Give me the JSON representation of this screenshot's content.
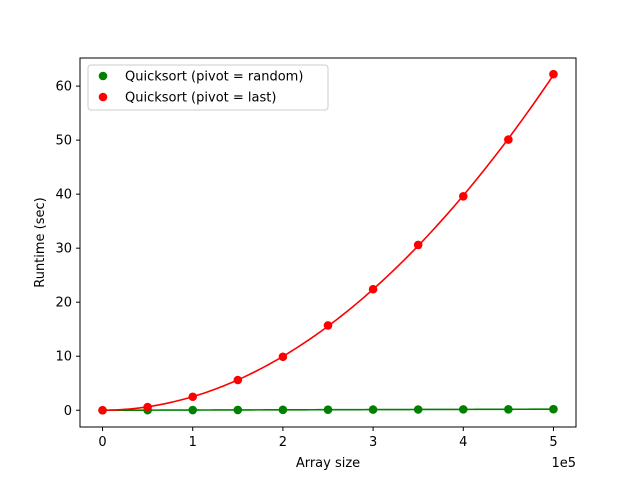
{
  "chart_data": {
    "type": "scatter",
    "xlabel": "Array size",
    "ylabel": "Runtime (sec)",
    "x_offset_label": "1e5",
    "x_scale": 100000,
    "xlim": [
      -25000,
      525000
    ],
    "ylim": [
      -3.1,
      65.2
    ],
    "x_ticks": [
      0,
      100000,
      200000,
      300000,
      400000,
      500000
    ],
    "x_tick_labels": [
      "0",
      "1",
      "2",
      "3",
      "4",
      "5"
    ],
    "y_ticks": [
      0,
      10,
      20,
      30,
      40,
      50,
      60
    ],
    "y_tick_labels": [
      "0",
      "10",
      "20",
      "30",
      "40",
      "50",
      "60"
    ],
    "legend_position": "upper-left",
    "grid": false,
    "series": [
      {
        "name": "Quicksort (pivot = random)",
        "color": "#008000",
        "fit": "quadratic",
        "x": [
          0,
          50000,
          100000,
          150000,
          200000,
          250000,
          300000,
          350000,
          400000,
          450000,
          500000
        ],
        "y": [
          0,
          0.02,
          0.04,
          0.06,
          0.08,
          0.1,
          0.12,
          0.14,
          0.16,
          0.18,
          0.2
        ]
      },
      {
        "name": "Quicksort (pivot = last)",
        "color": "#ff0000",
        "fit": "quadratic",
        "x": [
          0,
          50000,
          100000,
          150000,
          200000,
          250000,
          300000,
          350000,
          400000,
          450000,
          500000
        ],
        "y": [
          0,
          0.6,
          2.5,
          5.6,
          9.9,
          15.7,
          22.4,
          30.6,
          39.6,
          50.1,
          62.2
        ]
      }
    ]
  }
}
